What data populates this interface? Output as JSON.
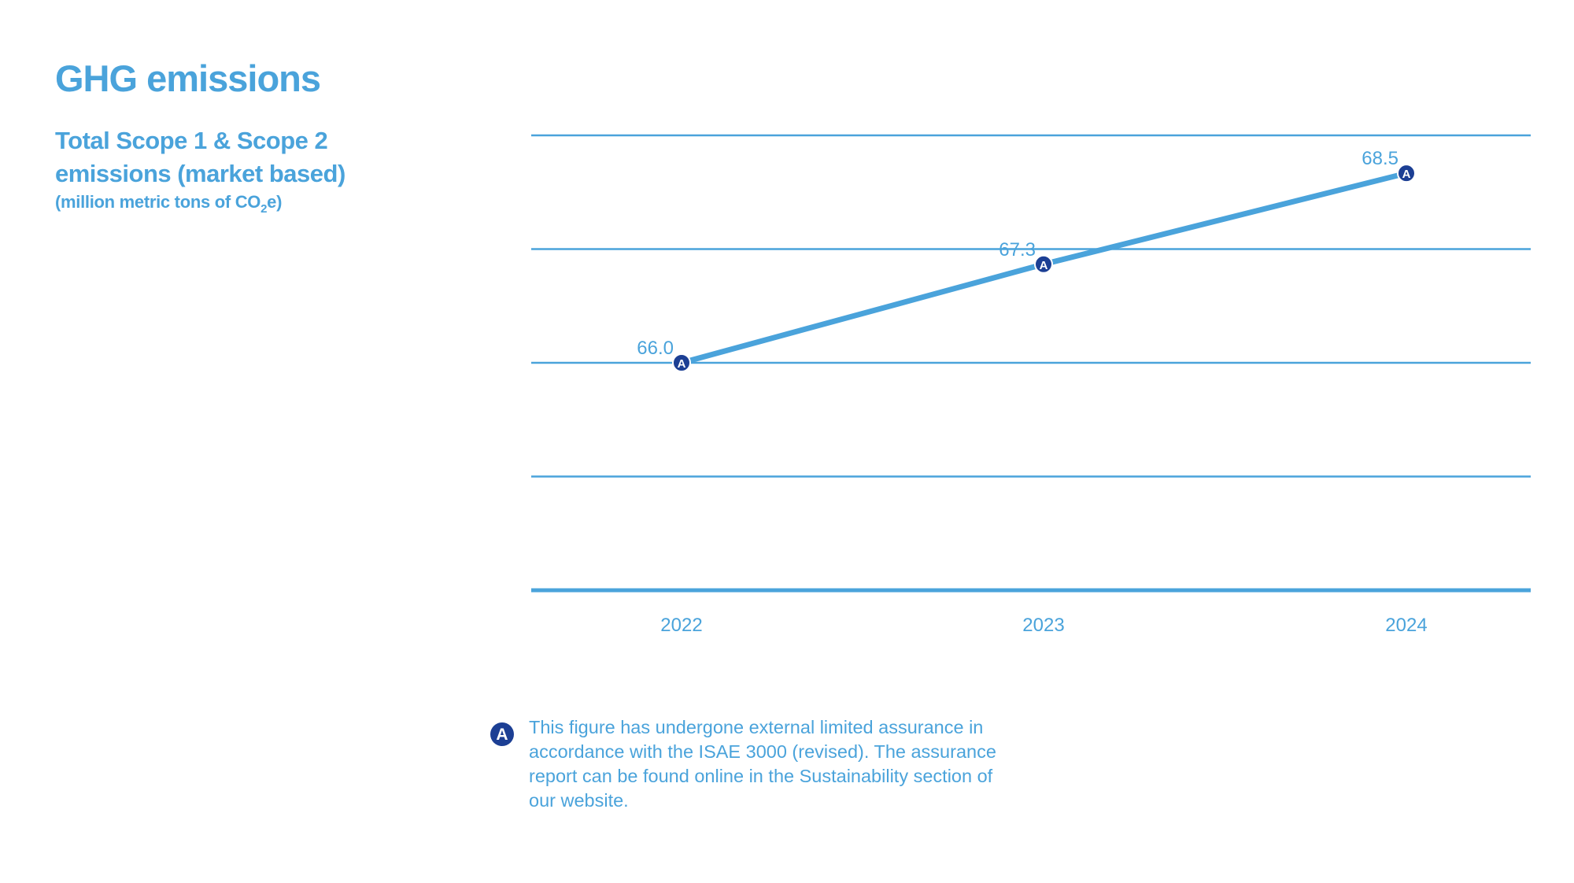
{
  "header": {
    "title": "GHG emissions",
    "subtitle": "Total Scope 1 & Scope 2 emissions (market based)",
    "unit_prefix": "(million metric tons of CO",
    "unit_sub": "2",
    "unit_suffix": "e)"
  },
  "chart_data": {
    "type": "line",
    "title": "Total Scope 1 & Scope 2 emissions (market based)",
    "ylabel": "million metric tons of CO2e",
    "xlabel": "",
    "categories": [
      "2022",
      "2023",
      "2024"
    ],
    "values": [
      66.0,
      67.3,
      68.5
    ],
    "value_labels": [
      "66.0",
      "67.3",
      "68.5"
    ],
    "series": [
      {
        "name": "Total Scope 1 & Scope 2 emissions",
        "values": [
          66.0,
          67.3,
          68.5
        ]
      }
    ],
    "ylim": [
      63.0,
      69.0
    ],
    "grid": true,
    "marker_badge": "A"
  },
  "footnote": {
    "badge": "A",
    "text": "This figure has undergone external limited assurance in accordance with the ISAE 3000 (revised). The assurance report can be found online in the Sustainability section of our website."
  },
  "colors": {
    "accent": "#4aa3db",
    "badge": "#1c3f94",
    "badge_text": "#ffffff"
  }
}
